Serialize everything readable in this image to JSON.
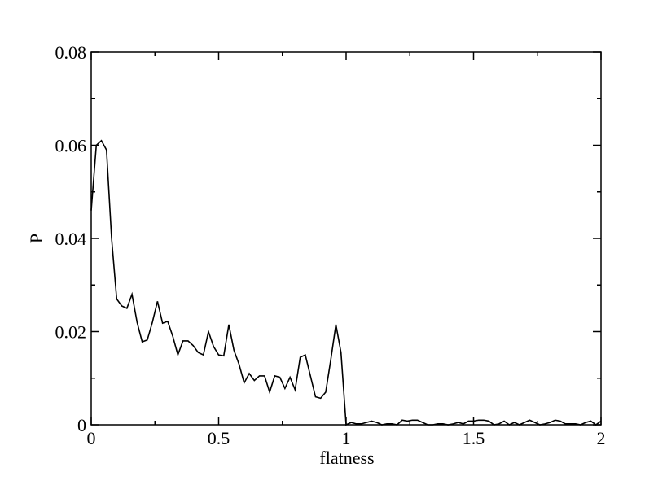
{
  "chart_data": {
    "type": "line",
    "xlabel": "flatness",
    "ylabel": "P",
    "x": [
      0,
      0.02,
      0.04,
      0.06,
      0.08,
      0.1,
      0.12,
      0.14,
      0.16,
      0.18,
      0.2,
      0.22,
      0.24,
      0.26,
      0.28,
      0.3,
      0.32,
      0.34,
      0.36,
      0.38,
      0.4,
      0.42,
      0.44,
      0.46,
      0.48,
      0.5,
      0.52,
      0.54,
      0.56,
      0.58,
      0.6,
      0.62,
      0.64,
      0.66,
      0.68,
      0.7,
      0.72,
      0.74,
      0.76,
      0.78,
      0.8,
      0.82,
      0.84,
      0.86,
      0.88,
      0.9,
      0.92,
      0.94,
      0.96,
      0.98,
      1,
      1.02,
      1.04,
      1.06,
      1.08,
      1.1,
      1.12,
      1.14,
      1.16,
      1.18,
      1.2,
      1.22,
      1.24,
      1.26,
      1.28,
      1.3,
      1.32,
      1.34,
      1.36,
      1.38,
      1.4,
      1.42,
      1.44,
      1.46,
      1.48,
      1.5,
      1.52,
      1.54,
      1.56,
      1.58,
      1.6,
      1.62,
      1.64,
      1.66,
      1.68,
      1.7,
      1.72,
      1.74,
      1.76,
      1.78,
      1.8,
      1.82,
      1.84,
      1.86,
      1.88,
      1.9,
      1.92,
      1.94,
      1.96,
      1.98,
      2
    ],
    "series": [
      {
        "color": "#000000",
        "values": [
          0.046,
          0.06,
          0.061,
          0.059,
          0.04,
          0.027,
          0.0255,
          0.025,
          0.028,
          0.022,
          0.0178,
          0.0182,
          0.022,
          0.0265,
          0.0218,
          0.0222,
          0.019,
          0.015,
          0.018,
          0.018,
          0.017,
          0.0155,
          0.015,
          0.02,
          0.0168,
          0.015,
          0.0148,
          0.0215,
          0.016,
          0.013,
          0.009,
          0.011,
          0.0095,
          0.0105,
          0.0105,
          0.007,
          0.0105,
          0.0102,
          0.0078,
          0.0102,
          0.0075,
          0.0145,
          0.015,
          0.0105,
          0.006,
          0.0057,
          0.007,
          0.014,
          0.0215,
          0.0155,
          0,
          0.0005,
          0.0002,
          0.0002,
          0.0005,
          0.0008,
          0.0005,
          0,
          0.0002,
          0.0002,
          0,
          0.001,
          0.0008,
          0.001,
          0.001,
          0.0005,
          0,
          0,
          0.0002,
          0.0002,
          0,
          0.0002,
          0.0005,
          0.0002,
          0.0008,
          0.0008,
          0.001,
          0.001,
          0.0008,
          0,
          0.0002,
          0.0008,
          0,
          0.0005,
          0,
          0.0005,
          0.001,
          0.0005,
          0,
          0.0002,
          0.0005,
          0.001,
          0.0008,
          0.0002,
          0.0002,
          0.0002,
          0,
          0.0005,
          0.0008,
          0,
          0.0008
        ]
      }
    ],
    "xlim": [
      0,
      2
    ],
    "ylim": [
      0,
      0.08
    ],
    "xticks": [
      0,
      0.5,
      1,
      1.5,
      2
    ],
    "yticks": [
      0,
      0.02,
      0.04,
      0.06,
      0.08
    ],
    "xminorticks": [
      0.25,
      0.75,
      1.25,
      1.75
    ],
    "yminorticks": [
      0.01,
      0.03,
      0.05,
      0.07
    ]
  }
}
